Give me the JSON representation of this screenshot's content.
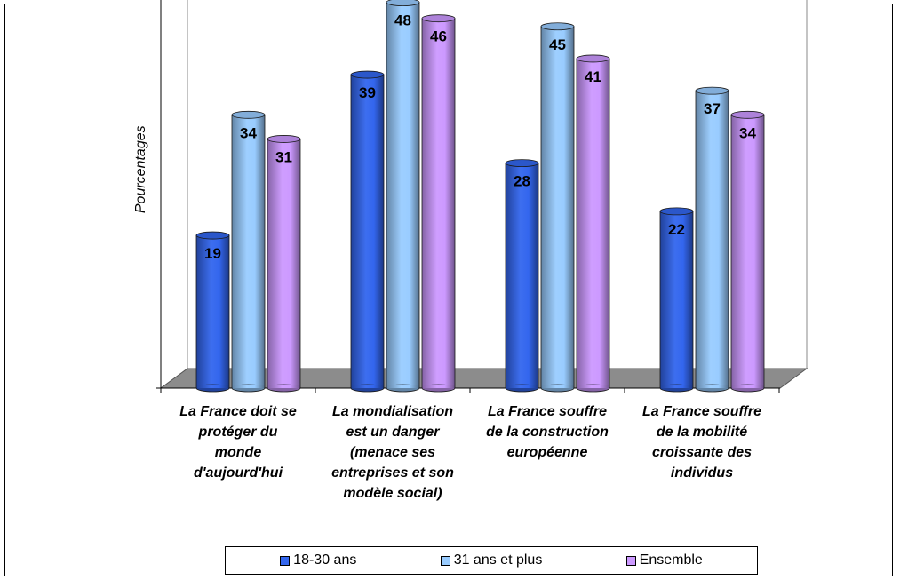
{
  "chart_data": {
    "type": "bar",
    "ylabel": "Pourcentages",
    "ylim": [
      0,
      50
    ],
    "grid": false,
    "legend_position": "bottom",
    "categories": [
      "La France doit se protéger du monde d'aujourd'hui",
      "La mondialisation est un danger (menace ses entreprises et son modèle social)",
      "La France souffre de la construction européenne",
      "La France souffre de la mobilité croissante des individus"
    ],
    "category_lines": [
      [
        "La France doit se",
        "protéger du",
        "monde",
        "d'aujourd'hui"
      ],
      [
        "La mondialisation",
        "est un danger",
        "(menace ses",
        "entreprises et son",
        "modèle social)"
      ],
      [
        "La France souffre",
        "de la construction",
        "européenne"
      ],
      [
        "La France souffre",
        "de la mobilité",
        "croissante des",
        "individus"
      ]
    ],
    "series": [
      {
        "name": "18-30 ans",
        "values": [
          19,
          39,
          28,
          22
        ],
        "color": "#3366ee"
      },
      {
        "name": "31 ans et plus",
        "values": [
          34,
          48,
          45,
          37
        ],
        "color": "#99ccff"
      },
      {
        "name": "Ensemble",
        "values": [
          31,
          46,
          41,
          34
        ],
        "color": "#cc99ff"
      }
    ]
  }
}
